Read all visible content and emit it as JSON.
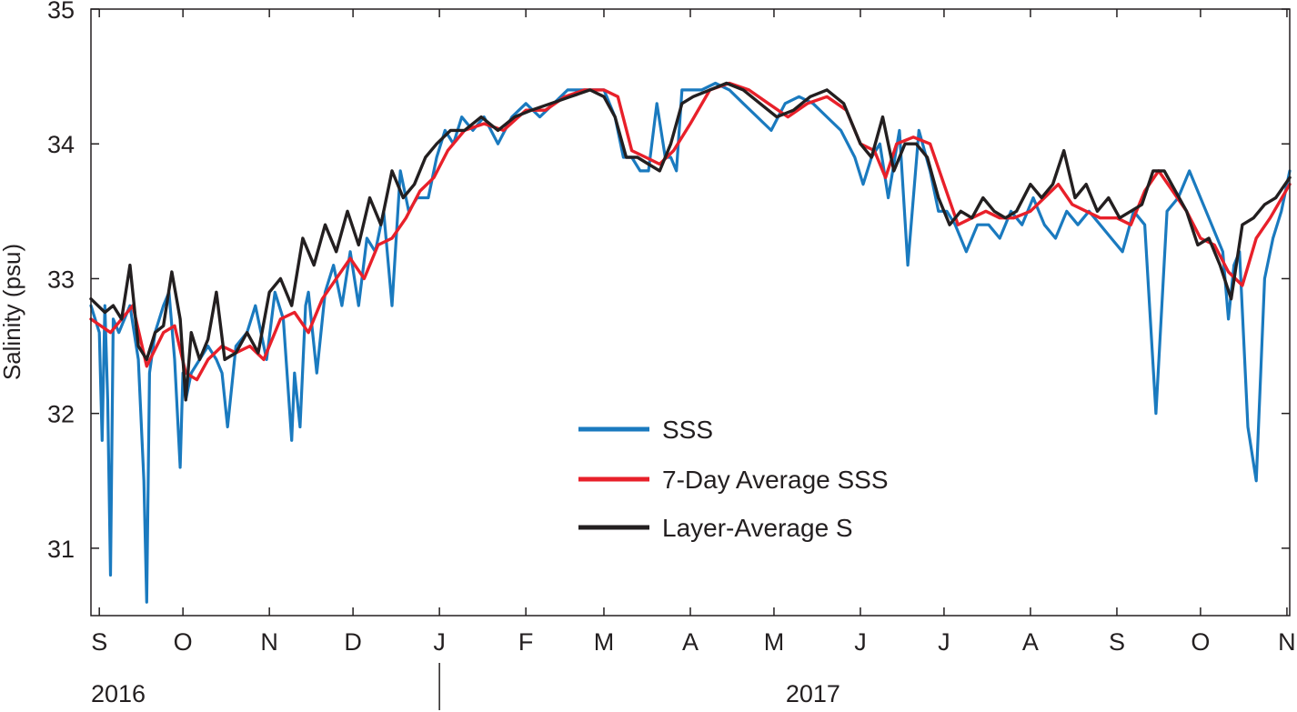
{
  "chart_data": {
    "type": "line",
    "title": "",
    "xlabel": "",
    "ylabel": "Salinity (psu)",
    "ylim": [
      30.5,
      35
    ],
    "yticks": [
      31,
      32,
      33,
      34,
      35
    ],
    "xlim": [
      "2016-08-29",
      "2017-11-02"
    ],
    "month_ticks": [
      {
        "date": "2016-09-01",
        "label": "S"
      },
      {
        "date": "2016-10-01",
        "label": "O"
      },
      {
        "date": "2016-11-01",
        "label": "N"
      },
      {
        "date": "2016-12-01",
        "label": "D"
      },
      {
        "date": "2017-01-01",
        "label": "J"
      },
      {
        "date": "2017-02-01",
        "label": "F"
      },
      {
        "date": "2017-03-01",
        "label": "M"
      },
      {
        "date": "2017-04-01",
        "label": "A"
      },
      {
        "date": "2017-05-01",
        "label": "M"
      },
      {
        "date": "2017-06-01",
        "label": "J"
      },
      {
        "date": "2017-07-01",
        "label": "J"
      },
      {
        "date": "2017-08-01",
        "label": "A"
      },
      {
        "date": "2017-09-01",
        "label": "S"
      },
      {
        "date": "2017-10-01",
        "label": "O"
      },
      {
        "date": "2017-11-01",
        "label": "N"
      }
    ],
    "year_labels": [
      {
        "label": "2016",
        "date": "2016-09-01"
      },
      {
        "label": "2017",
        "date": "2017-05-15"
      }
    ],
    "year_divider": "2017-01-01",
    "grid": false,
    "legend": "center",
    "series": [
      {
        "name": "SSS",
        "color": "#1a7abf",
        "x": [
          "2016-08-29",
          "2016-09-01",
          "2016-09-02",
          "2016-09-03",
          "2016-09-04",
          "2016-09-05",
          "2016-09-06",
          "2016-09-08",
          "2016-09-12",
          "2016-09-15",
          "2016-09-17",
          "2016-09-18",
          "2016-09-19",
          "2016-09-21",
          "2016-09-24",
          "2016-09-26",
          "2016-09-28",
          "2016-09-30",
          "2016-10-01",
          "2016-10-02",
          "2016-10-04",
          "2016-10-07",
          "2016-10-10",
          "2016-10-13",
          "2016-10-15",
          "2016-10-17",
          "2016-10-20",
          "2016-10-24",
          "2016-10-27",
          "2016-10-31",
          "2016-11-03",
          "2016-11-06",
          "2016-11-09",
          "2016-11-10",
          "2016-11-12",
          "2016-11-14",
          "2016-11-15",
          "2016-11-18",
          "2016-11-21",
          "2016-11-24",
          "2016-11-27",
          "2016-11-30",
          "2016-12-03",
          "2016-12-06",
          "2016-12-09",
          "2016-12-12",
          "2016-12-15",
          "2016-12-18",
          "2016-12-21",
          "2016-12-24",
          "2016-12-28",
          "2016-12-31",
          "2017-01-03",
          "2017-01-06",
          "2017-01-09",
          "2017-01-13",
          "2017-01-17",
          "2017-01-22",
          "2017-01-27",
          "2017-02-01",
          "2017-02-06",
          "2017-02-11",
          "2017-02-16",
          "2017-02-21",
          "2017-02-26",
          "2017-03-01",
          "2017-03-05",
          "2017-03-08",
          "2017-03-11",
          "2017-03-14",
          "2017-03-17",
          "2017-03-20",
          "2017-03-23",
          "2017-03-25",
          "2017-03-27",
          "2017-03-29",
          "2017-04-01",
          "2017-04-05",
          "2017-04-10",
          "2017-04-15",
          "2017-04-20",
          "2017-04-25",
          "2017-04-30",
          "2017-05-05",
          "2017-05-10",
          "2017-05-15",
          "2017-05-20",
          "2017-05-25",
          "2017-05-30",
          "2017-06-02",
          "2017-06-05",
          "2017-06-08",
          "2017-06-11",
          "2017-06-15",
          "2017-06-18",
          "2017-06-22",
          "2017-06-26",
          "2017-06-29",
          "2017-07-02",
          "2017-07-05",
          "2017-07-09",
          "2017-07-13",
          "2017-07-17",
          "2017-07-21",
          "2017-07-25",
          "2017-07-29",
          "2017-08-02",
          "2017-08-06",
          "2017-08-10",
          "2017-08-14",
          "2017-08-18",
          "2017-08-22",
          "2017-08-26",
          "2017-08-30",
          "2017-09-03",
          "2017-09-07",
          "2017-09-11",
          "2017-09-15",
          "2017-09-19",
          "2017-09-23",
          "2017-09-27",
          "2017-10-01",
          "2017-10-05",
          "2017-10-09",
          "2017-10-11",
          "2017-10-13",
          "2017-10-15",
          "2017-10-18",
          "2017-10-21",
          "2017-10-24",
          "2017-10-27",
          "2017-10-30",
          "2017-11-02"
        ],
        "y": [
          32.8,
          32.6,
          31.8,
          32.8,
          32.1,
          30.8,
          32.7,
          32.6,
          32.8,
          32.4,
          31.5,
          30.6,
          32.3,
          32.6,
          32.8,
          32.9,
          32.4,
          31.6,
          32.3,
          32.1,
          32.3,
          32.4,
          32.5,
          32.4,
          32.3,
          31.9,
          32.5,
          32.6,
          32.8,
          32.4,
          32.9,
          32.7,
          31.8,
          32.3,
          31.9,
          32.8,
          32.9,
          32.3,
          32.9,
          33.1,
          32.8,
          33.2,
          32.8,
          33.3,
          33.2,
          33.5,
          32.8,
          33.8,
          33.5,
          33.6,
          33.6,
          33.9,
          34.1,
          34.0,
          34.2,
          34.1,
          34.2,
          34.0,
          34.2,
          34.3,
          34.2,
          34.3,
          34.4,
          34.4,
          34.4,
          34.4,
          34.2,
          33.9,
          33.9,
          33.8,
          33.8,
          34.3,
          33.9,
          33.9,
          33.8,
          34.4,
          34.4,
          34.4,
          34.45,
          34.4,
          34.3,
          34.2,
          34.1,
          34.3,
          34.35,
          34.3,
          34.2,
          34.1,
          33.9,
          33.7,
          33.9,
          34.0,
          33.6,
          34.1,
          33.1,
          34.1,
          33.8,
          33.5,
          33.5,
          33.4,
          33.2,
          33.4,
          33.4,
          33.3,
          33.5,
          33.4,
          33.6,
          33.4,
          33.3,
          33.5,
          33.4,
          33.5,
          33.4,
          33.3,
          33.2,
          33.5,
          33.4,
          32.0,
          33.5,
          33.6,
          33.8,
          33.6,
          33.4,
          33.2,
          32.7,
          33.1,
          33.2,
          31.9,
          31.5,
          33.0,
          33.3,
          33.5,
          33.8
        ]
      },
      {
        "name": "7-Day Average SSS",
        "color": "#e8202a",
        "x": [
          "2016-08-29",
          "2016-09-05",
          "2016-09-09",
          "2016-09-13",
          "2016-09-18",
          "2016-09-24",
          "2016-09-28",
          "2016-10-02",
          "2016-10-06",
          "2016-10-10",
          "2016-10-15",
          "2016-10-20",
          "2016-10-25",
          "2016-10-30",
          "2016-11-05",
          "2016-11-10",
          "2016-11-15",
          "2016-11-20",
          "2016-11-25",
          "2016-11-30",
          "2016-12-05",
          "2016-12-10",
          "2016-12-15",
          "2016-12-20",
          "2016-12-25",
          "2016-12-30",
          "2017-01-04",
          "2017-01-10",
          "2017-01-17",
          "2017-01-24",
          "2017-02-01",
          "2017-02-08",
          "2017-02-15",
          "2017-02-22",
          "2017-03-01",
          "2017-03-06",
          "2017-03-11",
          "2017-03-16",
          "2017-03-21",
          "2017-03-26",
          "2017-04-01",
          "2017-04-08",
          "2017-04-15",
          "2017-04-22",
          "2017-04-29",
          "2017-05-06",
          "2017-05-13",
          "2017-05-20",
          "2017-05-27",
          "2017-06-01",
          "2017-06-06",
          "2017-06-10",
          "2017-06-14",
          "2017-06-20",
          "2017-06-26",
          "2017-07-01",
          "2017-07-06",
          "2017-07-11",
          "2017-07-16",
          "2017-07-21",
          "2017-07-26",
          "2017-08-01",
          "2017-08-06",
          "2017-08-11",
          "2017-08-16",
          "2017-08-21",
          "2017-08-26",
          "2017-09-01",
          "2017-09-06",
          "2017-09-11",
          "2017-09-16",
          "2017-09-21",
          "2017-09-26",
          "2017-10-01",
          "2017-10-06",
          "2017-10-11",
          "2017-10-16",
          "2017-10-21",
          "2017-10-26",
          "2017-11-02"
        ],
        "y": [
          32.7,
          32.6,
          32.7,
          32.8,
          32.35,
          32.6,
          32.65,
          32.3,
          32.25,
          32.4,
          32.5,
          32.45,
          32.5,
          32.4,
          32.7,
          32.75,
          32.6,
          32.85,
          33.0,
          33.15,
          33.0,
          33.25,
          33.3,
          33.45,
          33.65,
          33.75,
          33.95,
          34.1,
          34.15,
          34.1,
          34.25,
          34.25,
          34.35,
          34.4,
          34.4,
          34.35,
          33.95,
          33.9,
          33.85,
          33.95,
          34.15,
          34.4,
          34.45,
          34.4,
          34.3,
          34.2,
          34.3,
          34.35,
          34.25,
          34.0,
          33.95,
          33.75,
          34.0,
          34.05,
          34.0,
          33.7,
          33.4,
          33.45,
          33.5,
          33.45,
          33.45,
          33.5,
          33.6,
          33.7,
          33.55,
          33.5,
          33.45,
          33.45,
          33.4,
          33.65,
          33.8,
          33.65,
          33.5,
          33.3,
          33.25,
          33.05,
          32.95,
          33.3,
          33.45,
          33.7
        ]
      },
      {
        "name": "Layer-Average S",
        "color": "#231f20",
        "x": [
          "2016-08-29",
          "2016-09-03",
          "2016-09-06",
          "2016-09-09",
          "2016-09-12",
          "2016-09-15",
          "2016-09-18",
          "2016-09-21",
          "2016-09-24",
          "2016-09-27",
          "2016-09-30",
          "2016-10-02",
          "2016-10-04",
          "2016-10-07",
          "2016-10-10",
          "2016-10-13",
          "2016-10-16",
          "2016-10-20",
          "2016-10-24",
          "2016-10-28",
          "2016-11-01",
          "2016-11-05",
          "2016-11-09",
          "2016-11-13",
          "2016-11-17",
          "2016-11-21",
          "2016-11-25",
          "2016-11-29",
          "2016-12-03",
          "2016-12-07",
          "2016-12-11",
          "2016-12-15",
          "2016-12-19",
          "2016-12-23",
          "2016-12-27",
          "2016-12-31",
          "2017-01-05",
          "2017-01-10",
          "2017-01-16",
          "2017-01-22",
          "2017-01-28",
          "2017-02-03",
          "2017-02-10",
          "2017-02-17",
          "2017-02-24",
          "2017-03-01",
          "2017-03-05",
          "2017-03-09",
          "2017-03-13",
          "2017-03-17",
          "2017-03-21",
          "2017-03-25",
          "2017-03-29",
          "2017-04-02",
          "2017-04-08",
          "2017-04-14",
          "2017-04-20",
          "2017-04-26",
          "2017-05-02",
          "2017-05-08",
          "2017-05-14",
          "2017-05-20",
          "2017-05-26",
          "2017-06-01",
          "2017-06-05",
          "2017-06-09",
          "2017-06-13",
          "2017-06-17",
          "2017-06-21",
          "2017-06-25",
          "2017-06-29",
          "2017-07-03",
          "2017-07-07",
          "2017-07-11",
          "2017-07-15",
          "2017-07-19",
          "2017-07-23",
          "2017-07-27",
          "2017-08-01",
          "2017-08-05",
          "2017-08-09",
          "2017-08-13",
          "2017-08-17",
          "2017-08-21",
          "2017-08-25",
          "2017-08-29",
          "2017-09-02",
          "2017-09-06",
          "2017-09-10",
          "2017-09-14",
          "2017-09-18",
          "2017-09-22",
          "2017-09-26",
          "2017-09-30",
          "2017-10-04",
          "2017-10-08",
          "2017-10-12",
          "2017-10-16",
          "2017-10-20",
          "2017-10-24",
          "2017-10-28",
          "2017-11-02"
        ],
        "y": [
          32.85,
          32.75,
          32.8,
          32.7,
          33.1,
          32.5,
          32.4,
          32.6,
          32.65,
          33.05,
          32.7,
          32.1,
          32.6,
          32.4,
          32.55,
          32.9,
          32.4,
          32.45,
          32.6,
          32.45,
          32.9,
          33.0,
          32.8,
          33.3,
          33.1,
          33.4,
          33.2,
          33.5,
          33.25,
          33.6,
          33.4,
          33.8,
          33.6,
          33.7,
          33.9,
          34.0,
          34.1,
          34.1,
          34.2,
          34.1,
          34.2,
          34.25,
          34.3,
          34.35,
          34.4,
          34.35,
          34.2,
          33.9,
          33.9,
          33.85,
          33.8,
          34.0,
          34.3,
          34.35,
          34.4,
          34.45,
          34.4,
          34.3,
          34.2,
          34.25,
          34.35,
          34.4,
          34.3,
          34.0,
          33.9,
          34.2,
          33.8,
          34.0,
          34.0,
          33.9,
          33.6,
          33.4,
          33.5,
          33.45,
          33.6,
          33.5,
          33.45,
          33.5,
          33.7,
          33.6,
          33.7,
          33.95,
          33.6,
          33.7,
          33.5,
          33.6,
          33.45,
          33.5,
          33.55,
          33.8,
          33.8,
          33.65,
          33.5,
          33.25,
          33.3,
          33.1,
          32.85,
          33.4,
          33.45,
          33.55,
          33.6,
          33.75
        ]
      }
    ]
  }
}
